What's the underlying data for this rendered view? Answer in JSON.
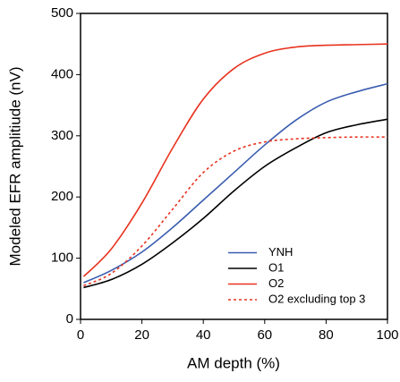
{
  "chart_data": {
    "type": "line",
    "x": [
      1,
      10,
      20,
      30,
      40,
      50,
      60,
      70,
      80,
      90,
      100
    ],
    "series": [
      {
        "name": "YNH",
        "color": "#3a5db0",
        "linestyle": "solid",
        "values": [
          60,
          80,
          110,
          150,
          195,
          240,
          285,
          325,
          355,
          372,
          385
        ]
      },
      {
        "name": "O1",
        "color": "#000000",
        "linestyle": "solid",
        "values": [
          52,
          65,
          90,
          125,
          165,
          210,
          250,
          280,
          305,
          318,
          327
        ]
      },
      {
        "name": "O2",
        "color": "#e8321e",
        "linestyle": "solid",
        "values": [
          70,
          115,
          190,
          280,
          360,
          410,
          435,
          445,
          448,
          449,
          450
        ]
      },
      {
        "name": "O2 excluding top 3",
        "color": "#e8321e",
        "linestyle": "dashed",
        "values": [
          55,
          75,
          120,
          180,
          240,
          275,
          290,
          295,
          297,
          298,
          298
        ]
      }
    ],
    "xlabel": "AM depth (%)",
    "ylabel": "Modeled EFR amplitiude (nV)",
    "xlim": [
      0,
      100
    ],
    "xticks": [
      0,
      20,
      40,
      60,
      80,
      100
    ],
    "ylim": [
      0,
      500
    ],
    "yticks": [
      0,
      100,
      200,
      300,
      400,
      500
    ],
    "grid": false,
    "legend": "lower right"
  }
}
